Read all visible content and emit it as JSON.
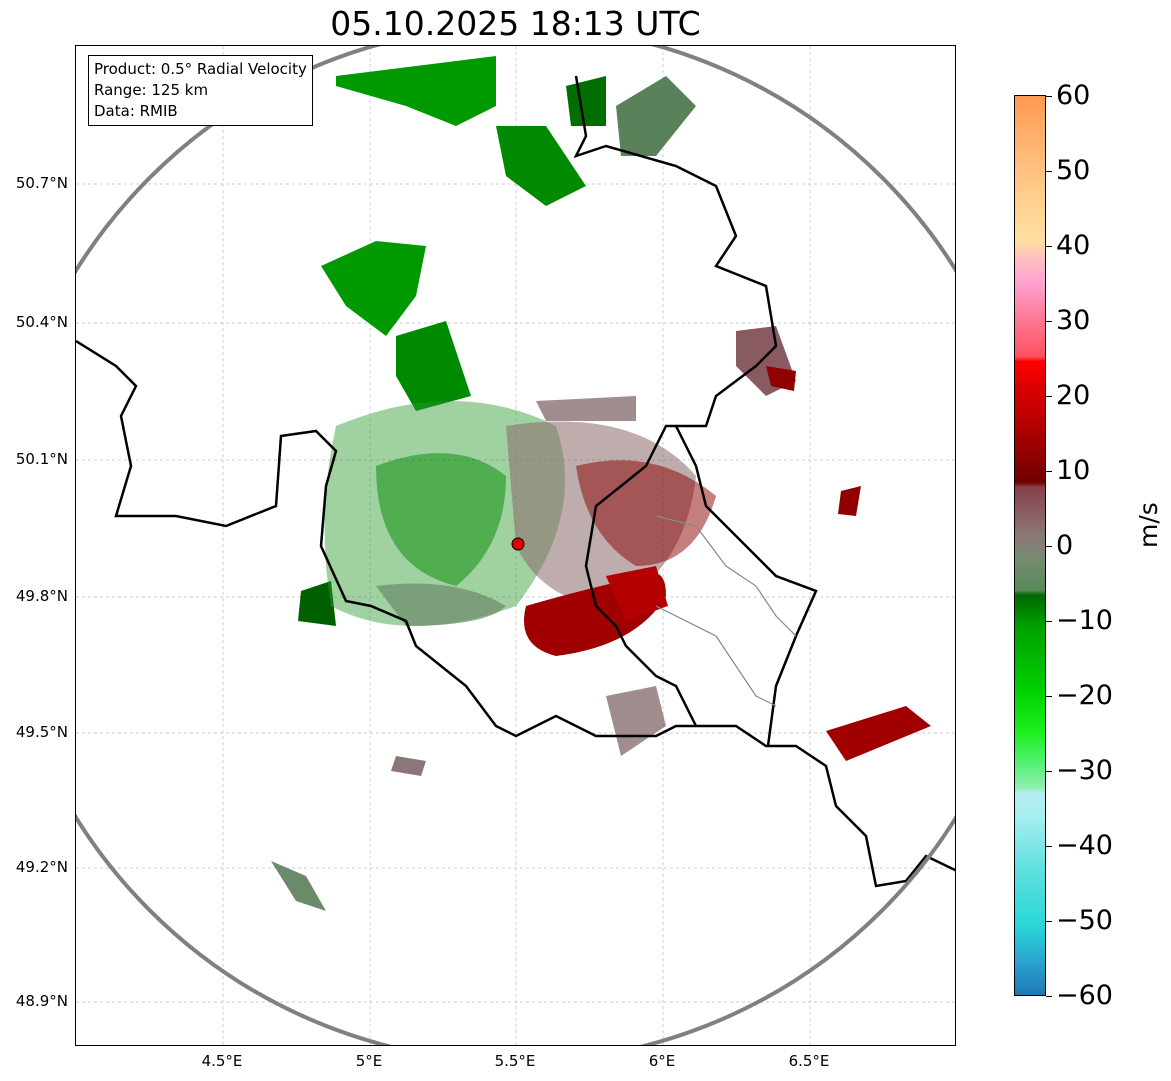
{
  "title": "05.10.2025 18:13 UTC",
  "info": {
    "product": "Product: 0.5° Radial Velocity",
    "range": "Range: 125 km",
    "data": "Data: RMIB"
  },
  "axes": {
    "lat_ticks": [
      "50.7°N",
      "50.4°N",
      "50.1°N",
      "49.8°N",
      "49.5°N",
      "49.2°N",
      "48.9°N"
    ],
    "lon_ticks": [
      "4.5°E",
      "5°E",
      "5.5°E",
      "6°E",
      "6.5°E"
    ]
  },
  "colorbar": {
    "unit": "m/s",
    "ticks": [
      "60",
      "50",
      "40",
      "30",
      "20",
      "10",
      "0",
      "−10",
      "−20",
      "−30",
      "−40",
      "−50",
      "−60"
    ],
    "range": [
      -60,
      60
    ]
  },
  "colors": {
    "radar_site": "#e00000",
    "range_ring": "#808080",
    "approaching": "#008000",
    "receding": "#a00000"
  }
}
